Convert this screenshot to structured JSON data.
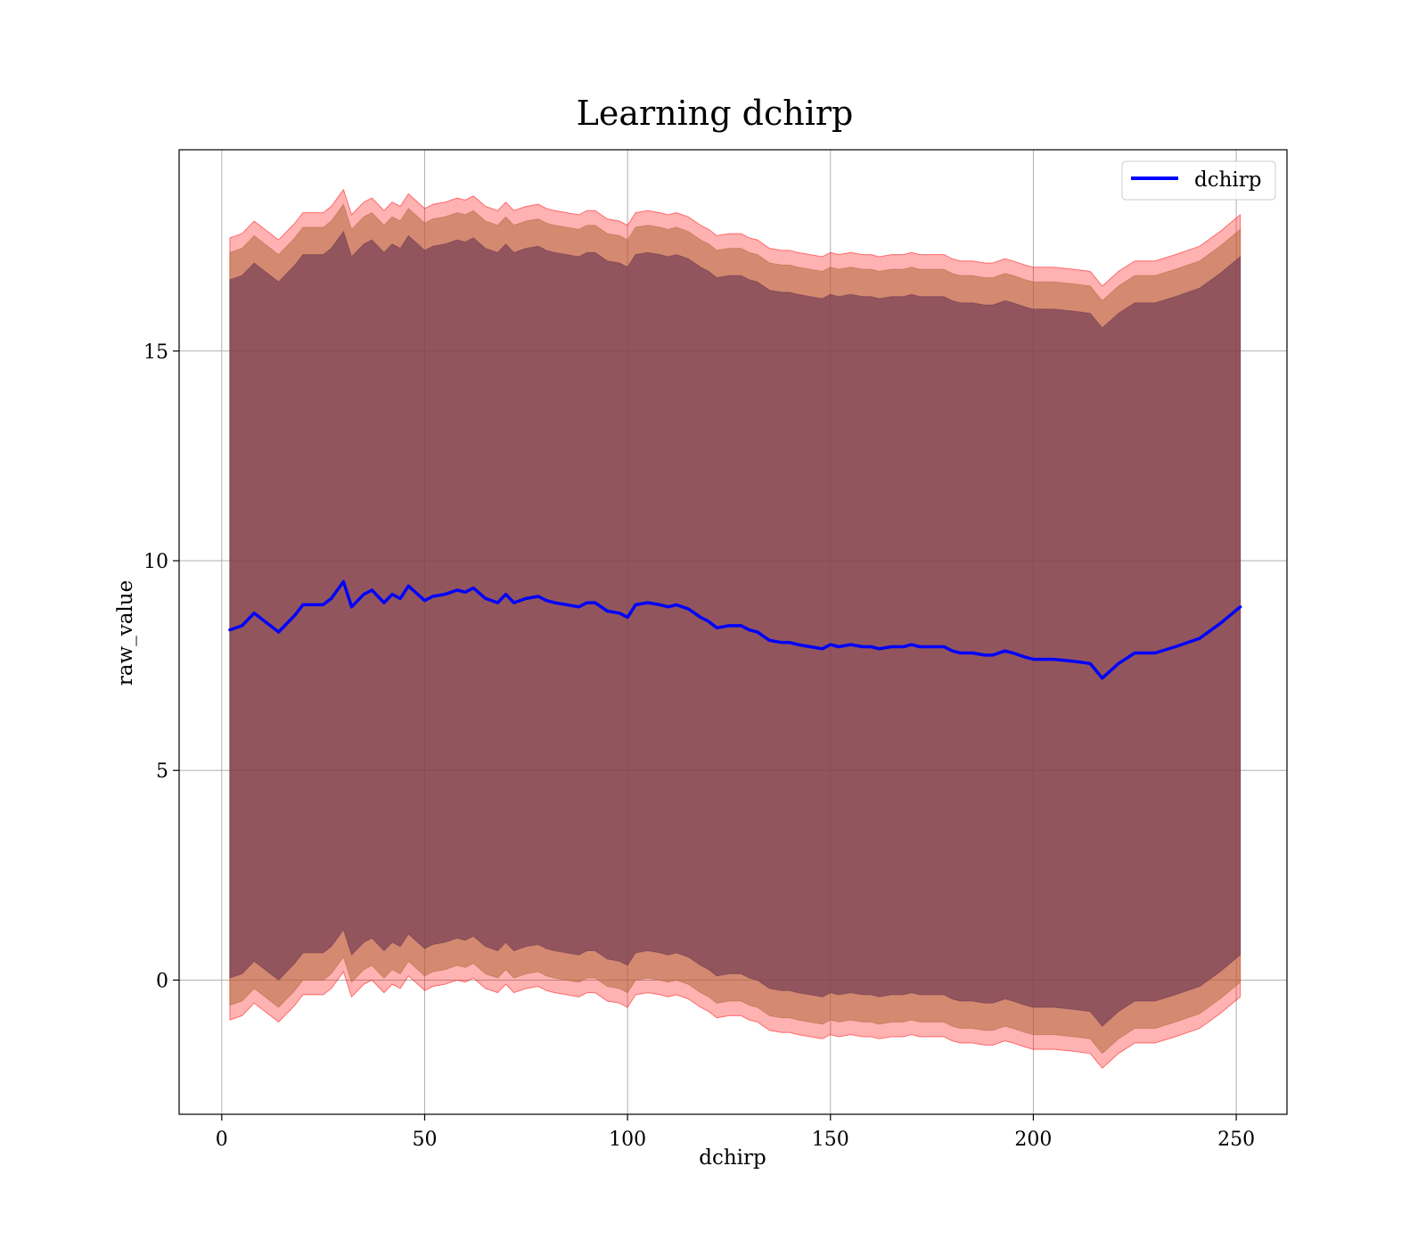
{
  "chart_data": {
    "type": "area",
    "title": "Learning dchirp",
    "xlabel": "dchirp",
    "ylabel": "raw_value",
    "xlim": [
      -10.5,
      262.5
    ],
    "ylim": [
      -3.2,
      19.8
    ],
    "xticks": [
      0,
      50,
      100,
      150,
      200,
      250
    ],
    "yticks": [
      0,
      5,
      10,
      15
    ],
    "x_tick_labels": [
      "0",
      "50",
      "100",
      "150",
      "200",
      "250"
    ],
    "y_tick_labels": [
      "0",
      "5",
      "10",
      "15"
    ],
    "grid": true,
    "legend": {
      "position": "top-right",
      "entries": [
        "dchirp"
      ]
    },
    "colors": {
      "line": "#0000ff",
      "band_outer": "#ff0000",
      "band_middle": "#b06a3c",
      "band_inner": "#6a3650",
      "frame": "#000000",
      "grid": "#b0b0b0"
    },
    "series": [
      {
        "name": "dchirp",
        "x": [
          2,
          5,
          8,
          10,
          12,
          14,
          16,
          18,
          20,
          22,
          25,
          27,
          30,
          32,
          35,
          37,
          40,
          42,
          44,
          46,
          50,
          52,
          55,
          58,
          60,
          62,
          65,
          68,
          70,
          72,
          75,
          78,
          80,
          82,
          85,
          88,
          90,
          92,
          95,
          98,
          100,
          102,
          105,
          108,
          110,
          112,
          115,
          118,
          120,
          122,
          125,
          128,
          130,
          132,
          135,
          138,
          140,
          142,
          145,
          148,
          150,
          152,
          155,
          158,
          160,
          162,
          165,
          168,
          170,
          172,
          175,
          178,
          180,
          182,
          185,
          188,
          190,
          193,
          195,
          198,
          200,
          205,
          210,
          214,
          217,
          221,
          225,
          230,
          235,
          241,
          246,
          251
        ],
        "y": [
          8.35,
          8.45,
          8.75,
          8.6,
          8.45,
          8.3,
          8.5,
          8.7,
          8.95,
          8.95,
          8.95,
          9.1,
          9.5,
          8.9,
          9.2,
          9.3,
          9.0,
          9.2,
          9.1,
          9.4,
          9.05,
          9.15,
          9.2,
          9.3,
          9.25,
          9.35,
          9.1,
          9.0,
          9.2,
          9.0,
          9.1,
          9.15,
          9.05,
          9.0,
          8.95,
          8.9,
          9.0,
          9.0,
          8.8,
          8.75,
          8.65,
          8.95,
          9.0,
          8.95,
          8.9,
          8.95,
          8.85,
          8.65,
          8.55,
          8.4,
          8.45,
          8.45,
          8.35,
          8.3,
          8.1,
          8.05,
          8.05,
          8.0,
          7.95,
          7.9,
          8.0,
          7.95,
          8.0,
          7.95,
          7.95,
          7.9,
          7.95,
          7.95,
          8.0,
          7.95,
          7.95,
          7.95,
          7.85,
          7.8,
          7.8,
          7.75,
          7.75,
          7.85,
          7.8,
          7.7,
          7.65,
          7.65,
          7.6,
          7.55,
          7.2,
          7.55,
          7.8,
          7.8,
          7.95,
          8.15,
          8.5,
          8.9
        ]
      }
    ],
    "bands": [
      {
        "layer": "outer",
        "upper_offset": 9.35,
        "lower_offset": -9.3
      },
      {
        "layer": "middle",
        "upper_offset": 9.0,
        "lower_offset": -8.95
      },
      {
        "layer": "inner",
        "upper_offset": 8.35,
        "lower_offset": -8.3
      }
    ]
  }
}
